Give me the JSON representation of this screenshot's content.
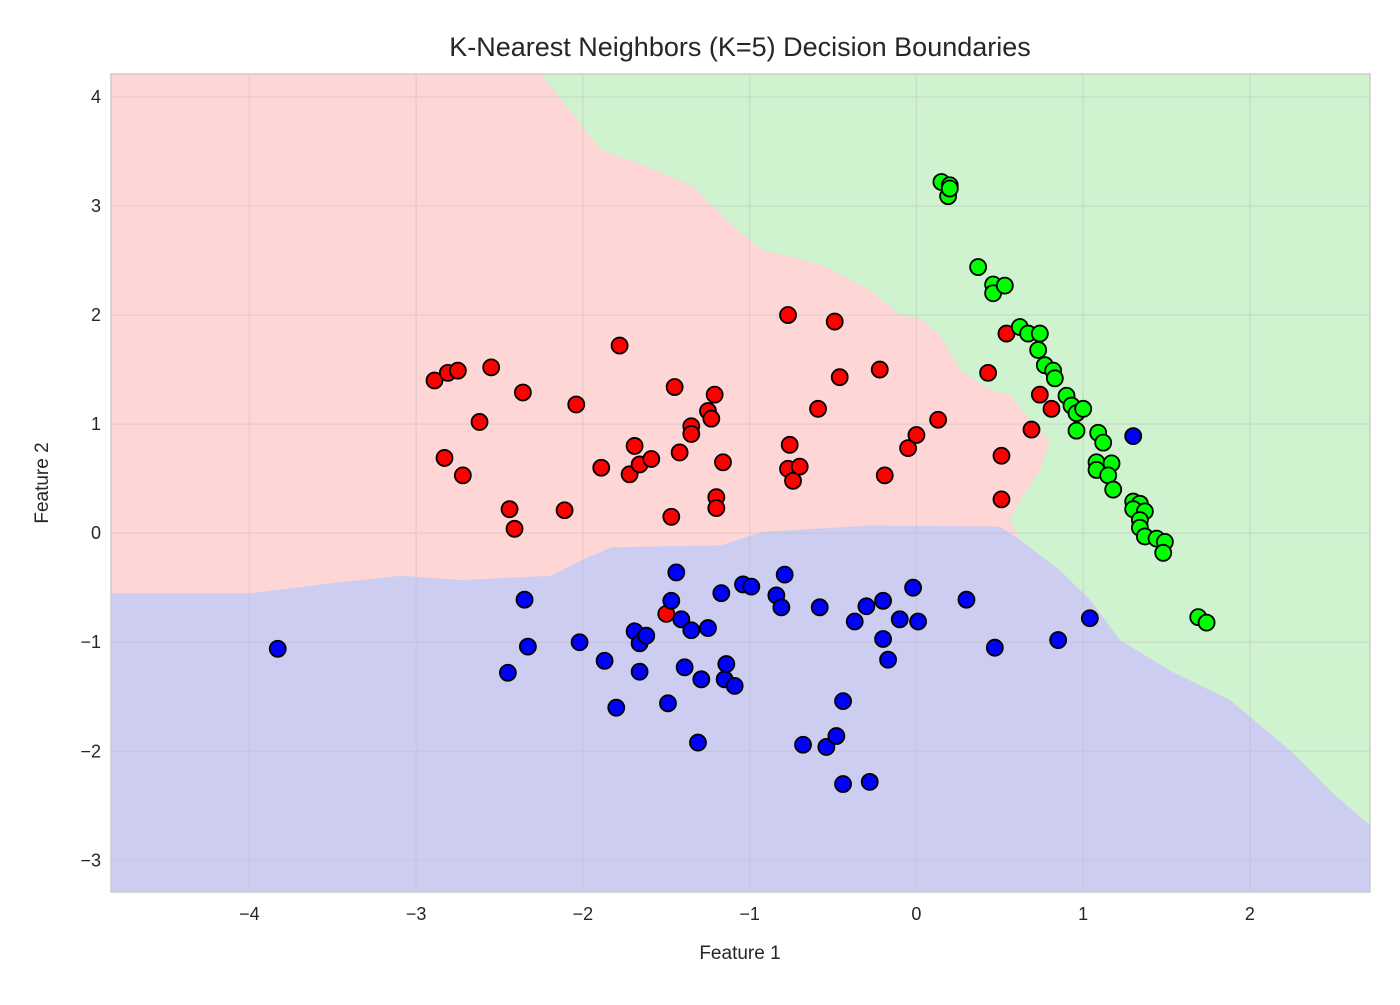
{
  "chart_data": {
    "type": "scatter",
    "title": "K-Nearest Neighbors (K=5) Decision Boundaries",
    "xlabel": "Feature 1",
    "ylabel": "Feature 2",
    "xlim": [
      -4.83,
      2.72
    ],
    "ylim": [
      -3.29,
      4.21
    ],
    "xticks": [
      -4,
      -3,
      -2,
      -1,
      0,
      1,
      2
    ],
    "yticks": [
      -3,
      -2,
      -1,
      0,
      1,
      2,
      3,
      4
    ],
    "xtick_labels": [
      "−4",
      "−3",
      "−2",
      "−1",
      "0",
      "1",
      "2"
    ],
    "ytick_labels": [
      "−3",
      "−2",
      "−1",
      "0",
      "1",
      "2",
      "3",
      "4"
    ],
    "grid": true,
    "marker_edge_color": "#000000",
    "regions": {
      "colors": {
        "red": "#ffd6d6",
        "green": "#cff2cf",
        "blue": "#cdcdf1"
      },
      "red_green_boundary": [
        [
          -2.25,
          4.21
        ],
        [
          -1.89,
          3.51
        ],
        [
          -1.65,
          3.38
        ],
        [
          -1.35,
          3.19
        ],
        [
          -1.11,
          2.83
        ],
        [
          -0.93,
          2.6
        ],
        [
          -0.57,
          2.46
        ],
        [
          -0.28,
          2.23
        ],
        [
          -0.1,
          2.0
        ],
        [
          0.02,
          1.97
        ],
        [
          0.14,
          1.82
        ],
        [
          0.26,
          1.5
        ],
        [
          0.44,
          1.31
        ],
        [
          0.56,
          1.27
        ],
        [
          0.68,
          1.04
        ],
        [
          0.8,
          0.85
        ],
        [
          0.74,
          0.58
        ],
        [
          0.62,
          0.3
        ],
        [
          0.56,
          0.12
        ],
        [
          0.62,
          -0.06
        ]
      ],
      "red_blue_boundary": [
        [
          -4.83,
          -0.55
        ],
        [
          -3.99,
          -0.55
        ],
        [
          -3.51,
          -0.46
        ],
        [
          -3.09,
          -0.39
        ],
        [
          -2.73,
          -0.43
        ],
        [
          -2.19,
          -0.39
        ],
        [
          -2.01,
          -0.25
        ],
        [
          -1.83,
          -0.13
        ],
        [
          -1.17,
          -0.11
        ],
        [
          -0.93,
          0.01
        ],
        [
          -0.28,
          0.07
        ],
        [
          0.5,
          0.06
        ],
        [
          0.62,
          -0.06
        ]
      ],
      "green_blue_boundary": [
        [
          0.62,
          -0.06
        ],
        [
          0.86,
          -0.34
        ],
        [
          1.04,
          -0.61
        ],
        [
          1.22,
          -0.98
        ],
        [
          1.52,
          -1.26
        ],
        [
          1.88,
          -1.53
        ],
        [
          2.24,
          -1.99
        ],
        [
          2.48,
          -2.36
        ],
        [
          2.72,
          -2.68
        ]
      ]
    },
    "series": [
      {
        "color": "#ff0000",
        "points": [
          [
            -2.89,
            1.4
          ],
          [
            -2.81,
            1.47
          ],
          [
            -2.75,
            1.49
          ],
          [
            -2.55,
            1.52
          ],
          [
            -2.83,
            0.69
          ],
          [
            -2.72,
            0.53
          ],
          [
            -2.62,
            1.02
          ],
          [
            -2.36,
            1.29
          ],
          [
            -2.44,
            0.22
          ],
          [
            -2.41,
            0.04
          ],
          [
            -2.11,
            0.21
          ],
          [
            -2.04,
            1.18
          ],
          [
            -1.89,
            0.6
          ],
          [
            -1.78,
            1.72
          ],
          [
            -1.72,
            0.54
          ],
          [
            -1.69,
            0.8
          ],
          [
            -1.66,
            0.63
          ],
          [
            -1.59,
            0.68
          ],
          [
            -1.47,
            0.15
          ],
          [
            -1.45,
            1.34
          ],
          [
            -1.42,
            0.74
          ],
          [
            -1.35,
            0.98
          ],
          [
            -1.35,
            0.91
          ],
          [
            -1.25,
            1.12
          ],
          [
            -1.23,
            1.05
          ],
          [
            -1.21,
            1.27
          ],
          [
            -1.2,
            0.33
          ],
          [
            -1.2,
            0.23
          ],
          [
            -1.16,
            0.65
          ],
          [
            -1.5,
            -0.74
          ],
          [
            -0.77,
            2.0
          ],
          [
            -0.76,
            0.81
          ],
          [
            -0.77,
            0.59
          ],
          [
            -0.74,
            0.48
          ],
          [
            -0.7,
            0.61
          ],
          [
            -0.59,
            1.14
          ],
          [
            -0.49,
            1.94
          ],
          [
            -0.46,
            1.43
          ],
          [
            -0.22,
            1.5
          ],
          [
            -0.19,
            0.53
          ],
          [
            -0.05,
            0.78
          ],
          [
            0.0,
            0.9
          ],
          [
            0.13,
            1.04
          ],
          [
            0.43,
            1.47
          ],
          [
            0.51,
            0.71
          ],
          [
            0.51,
            0.31
          ],
          [
            0.54,
            1.83
          ],
          [
            0.69,
            0.95
          ],
          [
            0.74,
            1.27
          ],
          [
            0.81,
            1.14
          ]
        ]
      },
      {
        "color": "#00ff00",
        "points": [
          [
            0.15,
            3.22
          ],
          [
            0.2,
            3.19
          ],
          [
            0.19,
            3.09
          ],
          [
            0.2,
            3.16
          ],
          [
            0.37,
            2.44
          ],
          [
            0.46,
            2.28
          ],
          [
            0.46,
            2.2
          ],
          [
            0.53,
            2.27
          ],
          [
            0.62,
            1.89
          ],
          [
            0.67,
            1.83
          ],
          [
            0.74,
            1.83
          ],
          [
            0.73,
            1.68
          ],
          [
            0.77,
            1.54
          ],
          [
            0.82,
            1.49
          ],
          [
            0.83,
            1.42
          ],
          [
            0.9,
            1.26
          ],
          [
            0.93,
            1.17
          ],
          [
            0.96,
            1.1
          ],
          [
            1.0,
            1.14
          ],
          [
            0.96,
            0.94
          ],
          [
            1.09,
            0.92
          ],
          [
            1.12,
            0.83
          ],
          [
            1.08,
            0.65
          ],
          [
            1.17,
            0.64
          ],
          [
            1.08,
            0.58
          ],
          [
            1.15,
            0.53
          ],
          [
            1.18,
            0.4
          ],
          [
            1.3,
            0.29
          ],
          [
            1.34,
            0.27
          ],
          [
            1.3,
            0.22
          ],
          [
            1.37,
            0.2
          ],
          [
            1.34,
            0.12
          ],
          [
            1.34,
            0.05
          ],
          [
            1.37,
            -0.03
          ],
          [
            1.44,
            -0.05
          ],
          [
            1.49,
            -0.08
          ],
          [
            1.48,
            -0.18
          ],
          [
            1.69,
            -0.77
          ],
          [
            1.74,
            -0.82
          ]
        ]
      },
      {
        "color": "#0000ff",
        "points": [
          [
            -3.83,
            -1.06
          ],
          [
            -2.45,
            -1.28
          ],
          [
            -2.35,
            -0.61
          ],
          [
            -2.33,
            -1.04
          ],
          [
            -2.02,
            -1.0
          ],
          [
            -1.87,
            -1.17
          ],
          [
            -1.8,
            -1.6
          ],
          [
            -1.69,
            -0.9
          ],
          [
            -1.66,
            -1.01
          ],
          [
            -1.66,
            -1.27
          ],
          [
            -1.62,
            -0.94
          ],
          [
            -1.49,
            -1.56
          ],
          [
            -1.47,
            -0.62
          ],
          [
            -1.44,
            -0.36
          ],
          [
            -1.41,
            -0.79
          ],
          [
            -1.39,
            -1.23
          ],
          [
            -1.35,
            -0.89
          ],
          [
            -1.29,
            -1.34
          ],
          [
            -1.31,
            -1.92
          ],
          [
            -1.25,
            -0.87
          ],
          [
            -1.17,
            -0.55
          ],
          [
            -1.15,
            -1.34
          ],
          [
            -1.14,
            -1.2
          ],
          [
            -1.09,
            -1.4
          ],
          [
            -1.04,
            -0.47
          ],
          [
            -0.99,
            -0.49
          ],
          [
            -0.84,
            -0.57
          ],
          [
            -0.81,
            -0.68
          ],
          [
            -0.79,
            -0.38
          ],
          [
            -0.68,
            -1.94
          ],
          [
            -0.58,
            -0.68
          ],
          [
            -0.54,
            -1.96
          ],
          [
            -0.48,
            -1.86
          ],
          [
            -0.44,
            -1.54
          ],
          [
            -0.44,
            -2.3
          ],
          [
            -0.37,
            -0.81
          ],
          [
            -0.3,
            -0.67
          ],
          [
            -0.28,
            -2.28
          ],
          [
            -0.2,
            -0.62
          ],
          [
            -0.2,
            -0.97
          ],
          [
            -0.17,
            -1.16
          ],
          [
            -0.1,
            -0.79
          ],
          [
            -0.02,
            -0.5
          ],
          [
            0.01,
            -0.81
          ],
          [
            0.3,
            -0.61
          ],
          [
            0.47,
            -1.05
          ],
          [
            0.85,
            -0.98
          ],
          [
            1.04,
            -0.78
          ],
          [
            1.3,
            0.89
          ]
        ]
      }
    ]
  }
}
